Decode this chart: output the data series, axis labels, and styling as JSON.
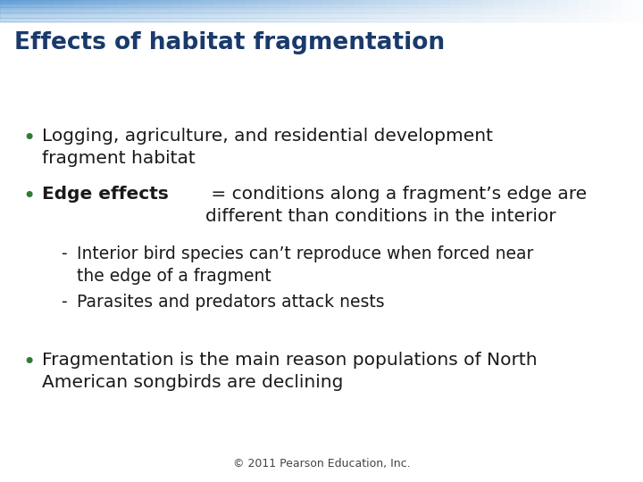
{
  "title": "Effects of habitat fragmentation",
  "title_color": "#1a3a6b",
  "title_fontsize": 19,
  "background_color": "#FFFFFF",
  "bullet_color": "#2E7D32",
  "text_color": "#1A1A1A",
  "bullet_fontsize": 14.5,
  "sub_bullet_fontsize": 13.5,
  "copyright_text": "© 2011 Pearson Education, Inc.",
  "copyright_fontsize": 9,
  "copyright_color": "#444444",
  "bullets": [
    {
      "type": "bullet",
      "text": "Logging, agriculture, and residential development\nfragment habitat"
    },
    {
      "type": "bullet",
      "bold_part": "Edge effects",
      "normal_part": " = conditions along a fragment’s edge are\ndifferent than conditions in the interior"
    },
    {
      "type": "sub_bullet",
      "text": "Interior bird species can’t reproduce when forced near\nthe edge of a fragment"
    },
    {
      "type": "sub_bullet",
      "text": "Parasites and predators attack nests"
    },
    {
      "type": "bullet",
      "text": "Fragmentation is the main reason populations of North\nAmerican songbirds are declining"
    }
  ]
}
